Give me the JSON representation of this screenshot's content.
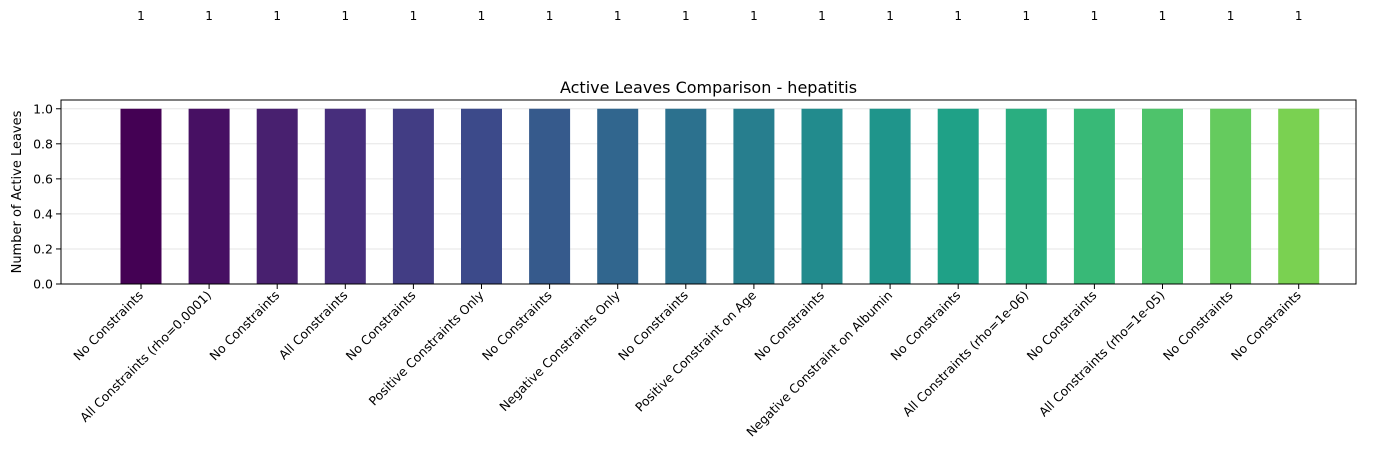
{
  "chart_data": {
    "type": "bar",
    "title": "Active Leaves Comparison - hepatitis",
    "xlabel": "",
    "ylabel": "Number of Active Leaves",
    "ylim": [
      0,
      1.05
    ],
    "yticks": [
      0.0,
      0.2,
      0.4,
      0.6,
      0.8,
      1.0
    ],
    "ytick_labels": [
      "0.0",
      "0.2",
      "0.4",
      "0.6",
      "0.8",
      "1.0"
    ],
    "grid": "y",
    "categories": [
      "No Constraints",
      "All Constraints (rho=0.0001)",
      "No Constraints",
      "All Constraints",
      "No Constraints",
      "Positive Constraints Only",
      "No Constraints",
      "Negative Constraints Only",
      "No Constraints",
      "Positive Constraint on Age",
      "No Constraints",
      "Negative Constraint on Albumin",
      "No Constraints",
      "All Constraints (rho=1e-06)",
      "No Constraints",
      "All Constraints (rho=1e-05)",
      "No Constraints",
      "No Constraints"
    ],
    "values": [
      1,
      1,
      1,
      1,
      1,
      1,
      1,
      1,
      1,
      1,
      1,
      1,
      1,
      1,
      1,
      1,
      1,
      1
    ],
    "data_labels": [
      "1",
      "1",
      "1",
      "1",
      "1",
      "1",
      "1",
      "1",
      "1",
      "1",
      "1",
      "1",
      "1",
      "1",
      "1",
      "1",
      "1",
      "1"
    ],
    "colors": [
      "#440154",
      "#471063",
      "#48206f",
      "#472e7c",
      "#423d84",
      "#3c4a8a",
      "#365a8c",
      "#31668e",
      "#2c718e",
      "#277e8e",
      "#228b8d",
      "#1f958b",
      "#1fa187",
      "#2aae80",
      "#38b977",
      "#4ec36b",
      "#65cb5e",
      "#7ad151"
    ]
  }
}
